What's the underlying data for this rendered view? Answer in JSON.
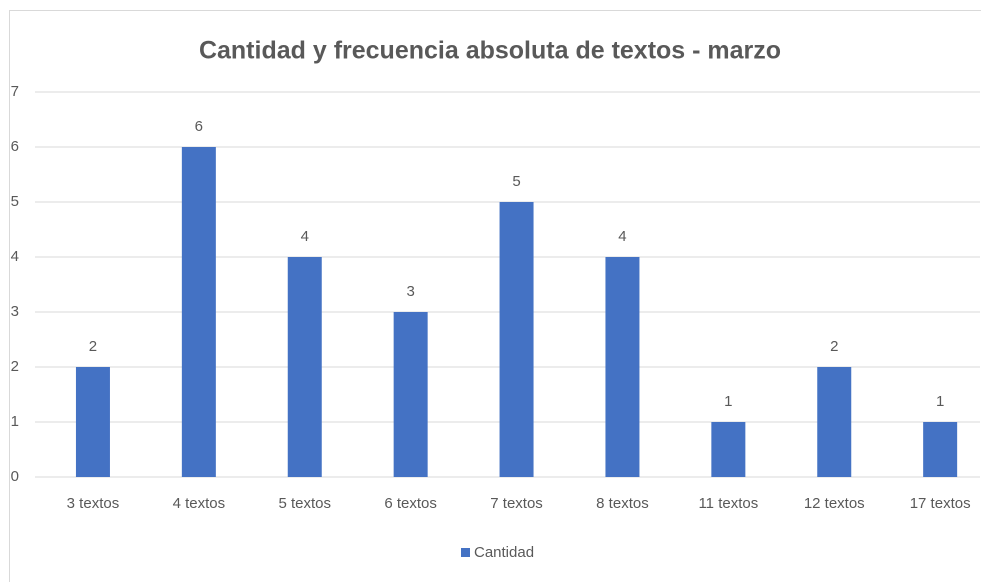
{
  "chart_data": {
    "type": "bar",
    "title": "Cantidad y frecuencia absoluta de textos - marzo",
    "categories": [
      "3 textos",
      "4 textos",
      "5 textos",
      "6 textos",
      "7 textos",
      "8 textos",
      "11 textos",
      "12 textos",
      "17 textos"
    ],
    "series": [
      {
        "name": "Cantidad",
        "color": "#4472c4",
        "values": [
          2,
          6,
          4,
          3,
          5,
          4,
          1,
          2,
          1
        ]
      }
    ],
    "ylim": [
      0,
      7
    ],
    "yticks": [
      0,
      1,
      2,
      3,
      4,
      5,
      6,
      7
    ],
    "grid": true,
    "legend": "bottom",
    "data_labels": true
  }
}
